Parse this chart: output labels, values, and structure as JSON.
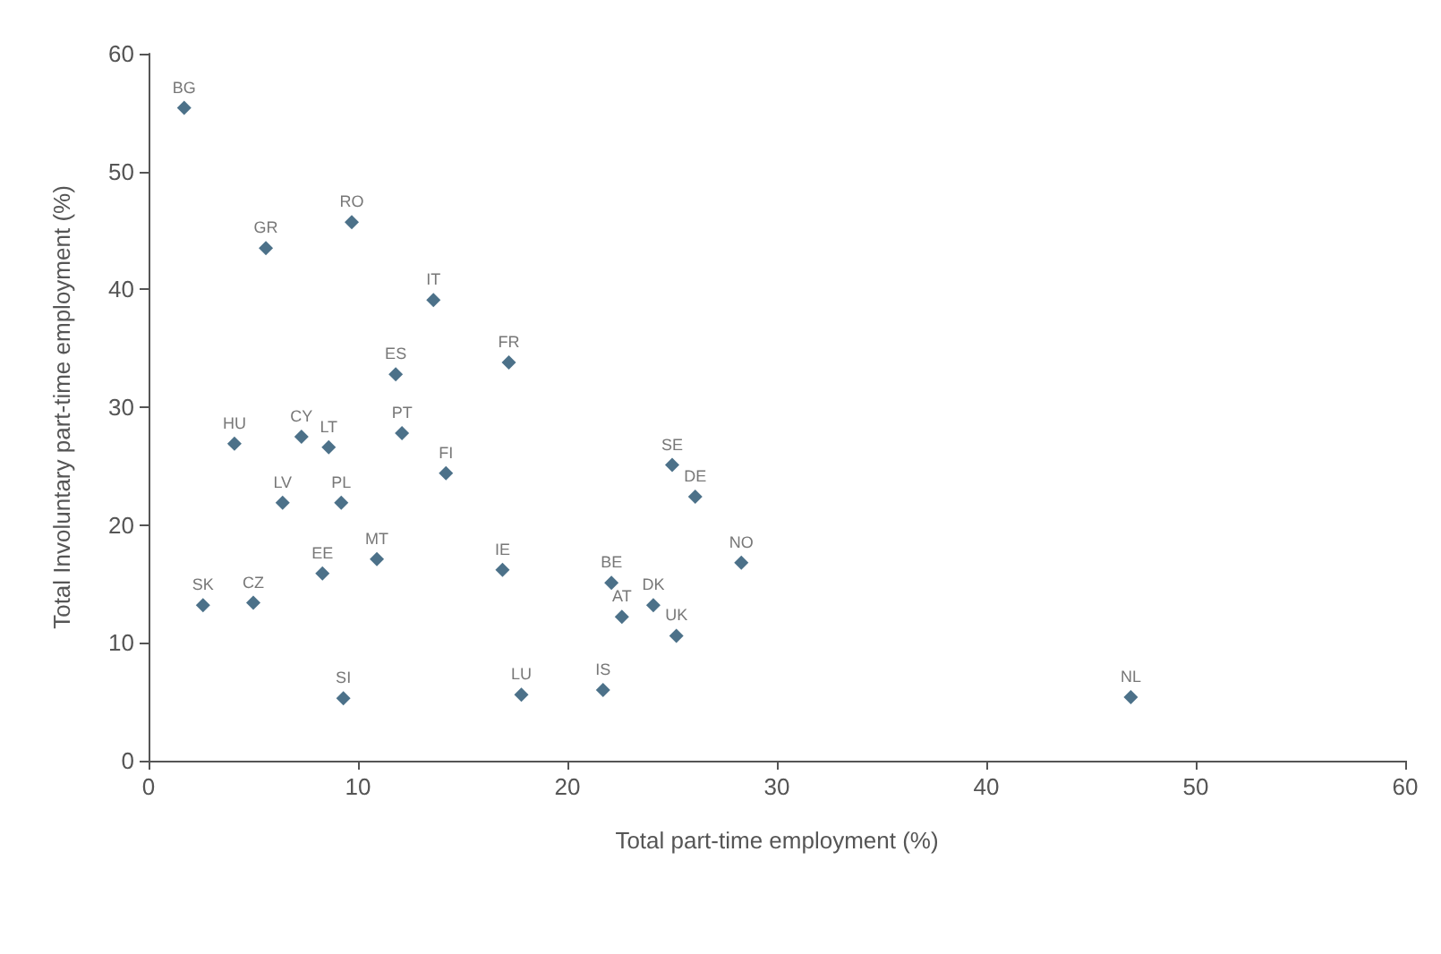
{
  "chart_data": {
    "type": "scatter",
    "xlabel": "Total part-time employment (%)",
    "ylabel": "Total Involuntary part-time employment (%)",
    "x": [
      1.7,
      5.6,
      9.7,
      13.6,
      11.8,
      17.2,
      4.1,
      7.3,
      8.6,
      12.1,
      14.2,
      6.4,
      9.2,
      10.9,
      8.3,
      16.9,
      2.6,
      5.0,
      9.3,
      17.8,
      25.0,
      26.1,
      28.3,
      22.1,
      24.1,
      22.6,
      25.2,
      21.7,
      46.9
    ],
    "values": [
      55.4,
      43.5,
      45.7,
      39.1,
      32.8,
      33.8,
      26.9,
      27.5,
      26.6,
      27.8,
      24.4,
      21.9,
      21.9,
      17.1,
      15.9,
      16.2,
      13.2,
      13.4,
      5.3,
      5.6,
      25.1,
      22.4,
      16.8,
      15.1,
      13.2,
      12.2,
      10.6,
      6.0,
      5.4
    ],
    "color": "#1f4e6b",
    "marker": "diamond",
    "grid": false,
    "xlim": [
      0,
      60
    ],
    "xticks": [
      0,
      10,
      20,
      30,
      40,
      50,
      60
    ],
    "ylim": [
      0,
      60
    ],
    "yticks": [
      0,
      10,
      20,
      30,
      40,
      50,
      60
    ],
    "annotations": [
      {
        "text": "BG",
        "x": 1.7,
        "y": 55.4
      },
      {
        "text": "GR",
        "x": 5.6,
        "y": 43.5
      },
      {
        "text": "RO",
        "x": 9.7,
        "y": 45.7
      },
      {
        "text": "IT",
        "x": 13.6,
        "y": 39.1
      },
      {
        "text": "ES",
        "x": 11.8,
        "y": 32.8
      },
      {
        "text": "FR",
        "x": 17.2,
        "y": 33.8
      },
      {
        "text": "HU",
        "x": 4.1,
        "y": 26.9
      },
      {
        "text": "CY",
        "x": 7.3,
        "y": 27.5
      },
      {
        "text": "LT",
        "x": 8.6,
        "y": 26.6
      },
      {
        "text": "PT",
        "x": 12.1,
        "y": 27.8
      },
      {
        "text": "FI",
        "x": 14.2,
        "y": 24.4
      },
      {
        "text": "LV",
        "x": 6.4,
        "y": 21.9
      },
      {
        "text": "PL",
        "x": 9.2,
        "y": 21.9
      },
      {
        "text": "MT",
        "x": 10.9,
        "y": 17.1
      },
      {
        "text": "EE",
        "x": 8.3,
        "y": 15.9
      },
      {
        "text": "IE",
        "x": 16.9,
        "y": 16.2
      },
      {
        "text": "SK",
        "x": 2.6,
        "y": 13.2
      },
      {
        "text": "CZ",
        "x": 5.0,
        "y": 13.4
      },
      {
        "text": "SI",
        "x": 9.3,
        "y": 5.3
      },
      {
        "text": "LU",
        "x": 17.8,
        "y": 5.6
      },
      {
        "text": "SE",
        "x": 25.0,
        "y": 25.1
      },
      {
        "text": "DE",
        "x": 26.1,
        "y": 22.4
      },
      {
        "text": "NO",
        "x": 28.3,
        "y": 16.8
      },
      {
        "text": "BE",
        "x": 22.1,
        "y": 15.1
      },
      {
        "text": "DK",
        "x": 24.1,
        "y": 13.2
      },
      {
        "text": "AT",
        "x": 22.6,
        "y": 12.2
      },
      {
        "text": "UK",
        "x": 25.2,
        "y": 10.6
      },
      {
        "text": "IS",
        "x": 21.7,
        "y": 6.0
      },
      {
        "text": "NL",
        "x": 46.9,
        "y": 5.4
      }
    ]
  }
}
